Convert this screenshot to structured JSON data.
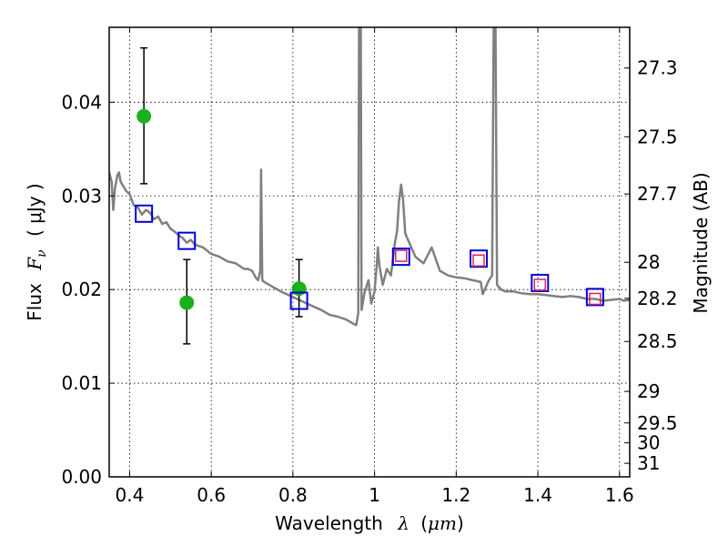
{
  "chart_data": {
    "type": "scatter",
    "xlabel": {
      "prefix": "Wavelength",
      "symbol": "λ",
      "unit_open": "(",
      "unit": "μm",
      "unit_close": ")"
    },
    "ylabel": {
      "prefix": "Flux",
      "symbol": "F",
      "subscript": "ν",
      "unit": "( μJy )"
    },
    "y2label": "Magnitude (AB)",
    "xlim": [
      0.35,
      1.625
    ],
    "ylim": [
      0.0,
      0.048
    ],
    "grid": true,
    "x_ticks": [
      {
        "value": 0.4,
        "label": "0.4"
      },
      {
        "value": 0.6,
        "label": "0.6"
      },
      {
        "value": 0.8,
        "label": "0.8"
      },
      {
        "value": 1.0,
        "label": "1"
      },
      {
        "value": 1.2,
        "label": "1.2"
      },
      {
        "value": 1.4,
        "label": "1.4"
      },
      {
        "value": 1.6,
        "label": "1.6"
      }
    ],
    "y_ticks": [
      {
        "value": 0.0,
        "label": "0.00"
      },
      {
        "value": 0.01,
        "label": "0.01"
      },
      {
        "value": 0.02,
        "label": "0.02"
      },
      {
        "value": 0.03,
        "label": "0.03"
      },
      {
        "value": 0.04,
        "label": "0.04"
      }
    ],
    "y2_ticks": [
      {
        "mag": 27.3,
        "label": "27.3"
      },
      {
        "mag": 27.5,
        "label": "27.5"
      },
      {
        "mag": 27.7,
        "label": "27.7"
      },
      {
        "mag": 28.0,
        "label": "28"
      },
      {
        "mag": 28.2,
        "label": "28.2"
      },
      {
        "mag": 28.5,
        "label": "28.5"
      },
      {
        "mag": 29.0,
        "label": "29"
      },
      {
        "mag": 29.5,
        "label": "29.5"
      },
      {
        "mag": 30.0,
        "label": "30"
      },
      {
        "mag": 31.0,
        "label": "31"
      }
    ],
    "series": [
      {
        "kind": "line",
        "color": "#808080",
        "points": [
          [
            0.35,
            0.0325
          ],
          [
            0.356,
            0.0315
          ],
          [
            0.36,
            0.0285
          ],
          [
            0.364,
            0.0308
          ],
          [
            0.37,
            0.0322
          ],
          [
            0.374,
            0.0325
          ],
          [
            0.378,
            0.0315
          ],
          [
            0.385,
            0.031
          ],
          [
            0.392,
            0.0305
          ],
          [
            0.4,
            0.0302
          ],
          [
            0.41,
            0.029
          ],
          [
            0.42,
            0.0288
          ],
          [
            0.43,
            0.028
          ],
          [
            0.44,
            0.0285
          ],
          [
            0.45,
            0.0282
          ],
          [
            0.46,
            0.0275
          ],
          [
            0.47,
            0.0278
          ],
          [
            0.48,
            0.027
          ],
          [
            0.49,
            0.0272
          ],
          [
            0.5,
            0.0265
          ],
          [
            0.51,
            0.0262
          ],
          [
            0.52,
            0.0258
          ],
          [
            0.53,
            0.0255
          ],
          [
            0.54,
            0.025
          ],
          [
            0.55,
            0.0253
          ],
          [
            0.56,
            0.0248
          ],
          [
            0.58,
            0.0245
          ],
          [
            0.6,
            0.0238
          ],
          [
            0.62,
            0.0235
          ],
          [
            0.64,
            0.023
          ],
          [
            0.66,
            0.0228
          ],
          [
            0.68,
            0.0222
          ],
          [
            0.69,
            0.0222
          ],
          [
            0.7,
            0.022
          ],
          [
            0.71,
            0.0212
          ],
          [
            0.715,
            0.021
          ],
          [
            0.72,
            0.022
          ],
          [
            0.722,
            0.0328
          ],
          [
            0.725,
            0.021
          ],
          [
            0.73,
            0.0208
          ],
          [
            0.75,
            0.0203
          ],
          [
            0.77,
            0.0198
          ],
          [
            0.79,
            0.0194
          ],
          [
            0.81,
            0.019
          ],
          [
            0.83,
            0.0186
          ],
          [
            0.85,
            0.0182
          ],
          [
            0.87,
            0.0178
          ],
          [
            0.89,
            0.0173
          ],
          [
            0.91,
            0.0171
          ],
          [
            0.93,
            0.0168
          ],
          [
            0.95,
            0.0163
          ],
          [
            0.955,
            0.0162
          ],
          [
            0.96,
            0.0175
          ],
          [
            0.962,
            0.05
          ],
          [
            0.966,
            0.05
          ],
          [
            0.968,
            0.0178
          ],
          [
            0.975,
            0.0196
          ],
          [
            0.985,
            0.021
          ],
          [
            0.992,
            0.0185
          ],
          [
            1.0,
            0.0198
          ],
          [
            1.005,
            0.0225
          ],
          [
            1.008,
            0.0245
          ],
          [
            1.012,
            0.0225
          ],
          [
            1.02,
            0.0205
          ],
          [
            1.03,
            0.0222
          ],
          [
            1.04,
            0.0215
          ],
          [
            1.05,
            0.025
          ],
          [
            1.055,
            0.0262
          ],
          [
            1.06,
            0.0295
          ],
          [
            1.065,
            0.0312
          ],
          [
            1.07,
            0.0295
          ],
          [
            1.075,
            0.026
          ],
          [
            1.085,
            0.025
          ],
          [
            1.1,
            0.0235
          ],
          [
            1.12,
            0.0228
          ],
          [
            1.14,
            0.0245
          ],
          [
            1.16,
            0.022
          ],
          [
            1.18,
            0.0215
          ],
          [
            1.2,
            0.0213
          ],
          [
            1.22,
            0.0212
          ],
          [
            1.24,
            0.021
          ],
          [
            1.26,
            0.0208
          ],
          [
            1.265,
            0.0195
          ],
          [
            1.272,
            0.0202
          ],
          [
            1.28,
            0.021
          ],
          [
            1.288,
            0.0215
          ],
          [
            1.292,
            0.05
          ],
          [
            1.296,
            0.05
          ],
          [
            1.3,
            0.0205
          ],
          [
            1.31,
            0.02
          ],
          [
            1.32,
            0.0198
          ],
          [
            1.34,
            0.0198
          ],
          [
            1.36,
            0.0196
          ],
          [
            1.38,
            0.0195
          ],
          [
            1.4,
            0.0195
          ],
          [
            1.42,
            0.0194
          ],
          [
            1.44,
            0.0193
          ],
          [
            1.46,
            0.0192
          ],
          [
            1.48,
            0.0193
          ],
          [
            1.5,
            0.0192
          ],
          [
            1.52,
            0.019
          ],
          [
            1.54,
            0.019
          ],
          [
            1.56,
            0.0188
          ],
          [
            1.58,
            0.0189
          ],
          [
            1.6,
            0.019
          ],
          [
            1.61,
            0.0188
          ],
          [
            1.625,
            0.0189
          ]
        ]
      },
      {
        "kind": "points-errorbar",
        "color": "#1ab01a",
        "points": [
          {
            "x": 0.435,
            "y": 0.0385,
            "yerr_low": 0.0313,
            "yerr_high": 0.0458
          },
          {
            "x": 0.54,
            "y": 0.0186,
            "yerr_low": 0.0142,
            "yerr_high": 0.0232
          },
          {
            "x": 0.815,
            "y": 0.0201,
            "yerr_low": 0.0171,
            "yerr_high": 0.0232
          }
        ]
      },
      {
        "kind": "open-squares",
        "color": "#0000dd",
        "points": [
          {
            "x": 0.435,
            "y": 0.0281
          },
          {
            "x": 0.54,
            "y": 0.0252
          },
          {
            "x": 0.815,
            "y": 0.0188
          },
          {
            "x": 1.065,
            "y": 0.0235
          },
          {
            "x": 1.255,
            "y": 0.0233
          },
          {
            "x": 1.405,
            "y": 0.0207
          },
          {
            "x": 1.54,
            "y": 0.0192
          }
        ]
      },
      {
        "kind": "small-squares",
        "color": "#e0205a",
        "points": [
          {
            "x": 1.065,
            "y": 0.0236
          },
          {
            "x": 1.255,
            "y": 0.0231
          },
          {
            "x": 1.405,
            "y": 0.0205
          },
          {
            "x": 1.54,
            "y": 0.019
          }
        ]
      }
    ]
  }
}
